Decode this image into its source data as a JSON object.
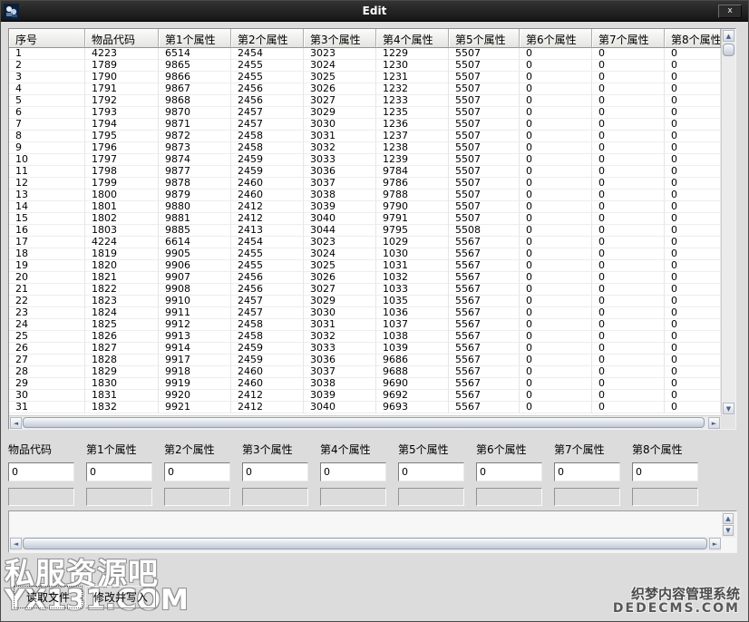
{
  "window": {
    "title": "Edit",
    "close_label": "x"
  },
  "table": {
    "columns": [
      "序号",
      "物品代码",
      "第1个属性",
      "第2个属性",
      "第3个属性",
      "第4个属性",
      "第5个属性",
      "第6个属性",
      "第7个属性",
      "第8个属性"
    ],
    "rows": [
      [
        "1",
        "4223",
        "6514",
        "2454",
        "3023",
        "1229",
        "5507",
        "0",
        "0",
        "0"
      ],
      [
        "2",
        "1789",
        "9865",
        "2455",
        "3024",
        "1230",
        "5507",
        "0",
        "0",
        "0"
      ],
      [
        "3",
        "1790",
        "9866",
        "2455",
        "3025",
        "1231",
        "5507",
        "0",
        "0",
        "0"
      ],
      [
        "4",
        "1791",
        "9867",
        "2456",
        "3026",
        "1232",
        "5507",
        "0",
        "0",
        "0"
      ],
      [
        "5",
        "1792",
        "9868",
        "2456",
        "3027",
        "1233",
        "5507",
        "0",
        "0",
        "0"
      ],
      [
        "6",
        "1793",
        "9870",
        "2457",
        "3029",
        "1235",
        "5507",
        "0",
        "0",
        "0"
      ],
      [
        "7",
        "1794",
        "9871",
        "2457",
        "3030",
        "1236",
        "5507",
        "0",
        "0",
        "0"
      ],
      [
        "8",
        "1795",
        "9872",
        "2458",
        "3031",
        "1237",
        "5507",
        "0",
        "0",
        "0"
      ],
      [
        "9",
        "1796",
        "9873",
        "2458",
        "3032",
        "1238",
        "5507",
        "0",
        "0",
        "0"
      ],
      [
        "10",
        "1797",
        "9874",
        "2459",
        "3033",
        "1239",
        "5507",
        "0",
        "0",
        "0"
      ],
      [
        "11",
        "1798",
        "9877",
        "2459",
        "3036",
        "9784",
        "5507",
        "0",
        "0",
        "0"
      ],
      [
        "12",
        "1799",
        "9878",
        "2460",
        "3037",
        "9786",
        "5507",
        "0",
        "0",
        "0"
      ],
      [
        "13",
        "1800",
        "9879",
        "2460",
        "3038",
        "9788",
        "5507",
        "0",
        "0",
        "0"
      ],
      [
        "14",
        "1801",
        "9880",
        "2412",
        "3039",
        "9790",
        "5507",
        "0",
        "0",
        "0"
      ],
      [
        "15",
        "1802",
        "9881",
        "2412",
        "3040",
        "9791",
        "5507",
        "0",
        "0",
        "0"
      ],
      [
        "16",
        "1803",
        "9885",
        "2413",
        "3044",
        "9795",
        "5508",
        "0",
        "0",
        "0"
      ],
      [
        "17",
        "4224",
        "6614",
        "2454",
        "3023",
        "1029",
        "5567",
        "0",
        "0",
        "0"
      ],
      [
        "18",
        "1819",
        "9905",
        "2455",
        "3024",
        "1030",
        "5567",
        "0",
        "0",
        "0"
      ],
      [
        "19",
        "1820",
        "9906",
        "2455",
        "3025",
        "1031",
        "5567",
        "0",
        "0",
        "0"
      ],
      [
        "20",
        "1821",
        "9907",
        "2456",
        "3026",
        "1032",
        "5567",
        "0",
        "0",
        "0"
      ],
      [
        "21",
        "1822",
        "9908",
        "2456",
        "3027",
        "1033",
        "5567",
        "0",
        "0",
        "0"
      ],
      [
        "22",
        "1823",
        "9910",
        "2457",
        "3029",
        "1035",
        "5567",
        "0",
        "0",
        "0"
      ],
      [
        "23",
        "1824",
        "9911",
        "2457",
        "3030",
        "1036",
        "5567",
        "0",
        "0",
        "0"
      ],
      [
        "24",
        "1825",
        "9912",
        "2458",
        "3031",
        "1037",
        "5567",
        "0",
        "0",
        "0"
      ],
      [
        "25",
        "1826",
        "9913",
        "2458",
        "3032",
        "1038",
        "5567",
        "0",
        "0",
        "0"
      ],
      [
        "26",
        "1827",
        "9914",
        "2459",
        "3033",
        "1039",
        "5567",
        "0",
        "0",
        "0"
      ],
      [
        "27",
        "1828",
        "9917",
        "2459",
        "3036",
        "9686",
        "5567",
        "0",
        "0",
        "0"
      ],
      [
        "28",
        "1829",
        "9918",
        "2460",
        "3037",
        "9688",
        "5567",
        "0",
        "0",
        "0"
      ],
      [
        "29",
        "1830",
        "9919",
        "2460",
        "3038",
        "9690",
        "5567",
        "0",
        "0",
        "0"
      ],
      [
        "30",
        "1831",
        "9920",
        "2412",
        "3039",
        "9692",
        "5567",
        "0",
        "0",
        "0"
      ],
      [
        "31",
        "1832",
        "9921",
        "2412",
        "3040",
        "9693",
        "5567",
        "0",
        "0",
        "0"
      ]
    ]
  },
  "form": {
    "fields": [
      {
        "label": "物品代码",
        "value": "0"
      },
      {
        "label": "第1个属性",
        "value": "0"
      },
      {
        "label": "第2个属性",
        "value": "0"
      },
      {
        "label": "第3个属性",
        "value": "0"
      },
      {
        "label": "第4个属性",
        "value": "0"
      },
      {
        "label": "第5个属性",
        "value": "0"
      },
      {
        "label": "第6个属性",
        "value": "0"
      },
      {
        "label": "第7个属性",
        "value": "0"
      },
      {
        "label": "第8个属性",
        "value": "0"
      }
    ]
  },
  "buttons": {
    "read": "读取文件",
    "write": "修改并写入"
  },
  "watermarks": {
    "left_line1": "私服资源吧",
    "left_line2": "YX131.COM",
    "right_line1": "织梦内容管理系统",
    "right_line2": "DEDECMS.COM"
  },
  "scroll_icons": {
    "up": "▲",
    "down": "▼",
    "left": "◄",
    "right": "►"
  },
  "colors": {
    "titlebar": "#1d1d1d",
    "background": "#dcdcdc",
    "table_bg": "#ffffff",
    "thumb": "#c9d0da"
  }
}
